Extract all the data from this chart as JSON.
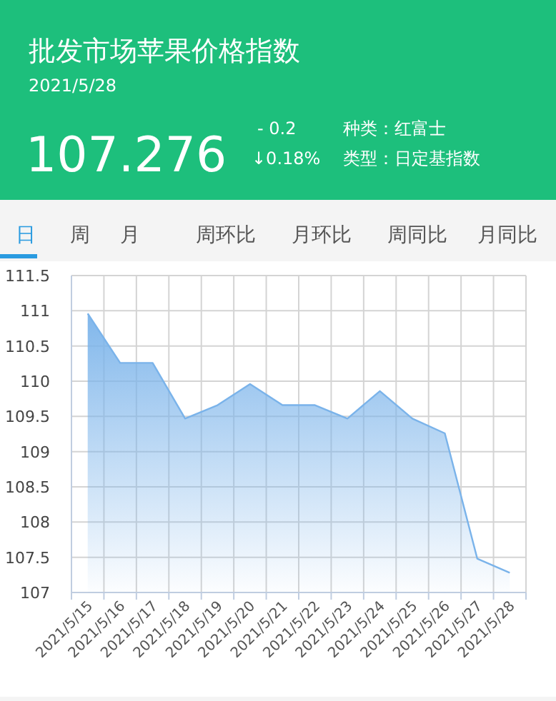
{
  "chart_data": [
    {
      "type": "other",
      "title": "批发市场苹果价格指数",
      "subtitle": "2021/5/28",
      "annotations": [
        "107.276",
        "- 0.2",
        "↓0.18%",
        "种类：红富士",
        "类型：日定基指数",
        "日",
        "周",
        "月",
        "周环比",
        "月环比",
        "周同比",
        "月同比"
      ]
    },
    {
      "type": "area",
      "categories": [
        "2021/5/15",
        "2021/5/16",
        "2021/5/17",
        "2021/5/18",
        "2021/5/19",
        "2021/5/20",
        "2021/5/21",
        "2021/5/22",
        "2021/5/23",
        "2021/5/24",
        "2021/5/25",
        "2021/5/26",
        "2021/5/27",
        "2021/5/28"
      ],
      "series": [
        {
          "color": "#7ab3ea",
          "values": [
            110.96,
            110.26,
            110.26,
            109.47,
            109.66,
            109.96,
            109.66,
            109.66,
            109.47,
            109.86,
            109.47,
            109.26,
            107.48,
            107.28
          ]
        }
      ],
      "ylim": [
        107,
        111.5
      ],
      "yticks": [
        107,
        107.5,
        108,
        108.5,
        109,
        109.5,
        110,
        110.5,
        111,
        111.5
      ],
      "grid": true
    }
  ]
}
